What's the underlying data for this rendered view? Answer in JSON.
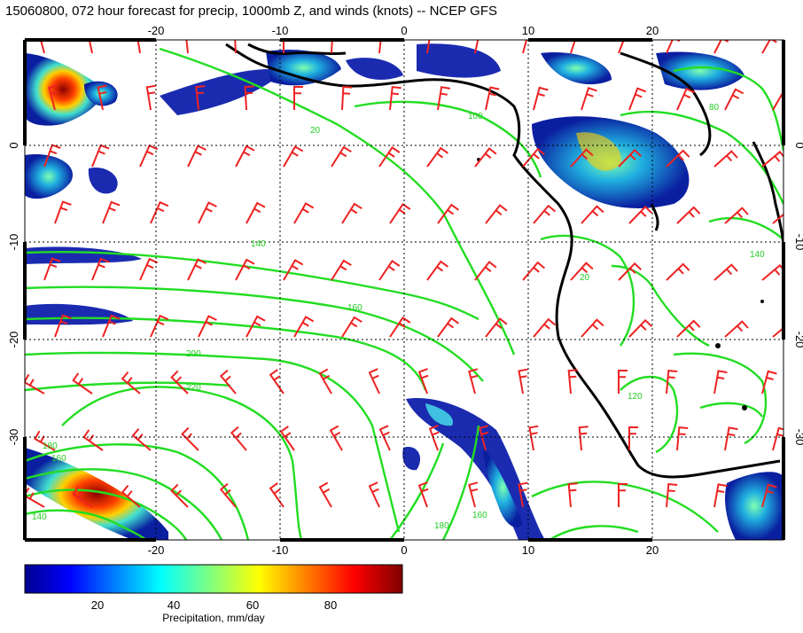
{
  "title": "15060800, 072 hour forecast for precip, 1000mb Z, and winds (knots) -- NCEP GFS",
  "map": {
    "lon_ticks": [
      "-20",
      "-10",
      "0",
      "10",
      "20"
    ],
    "lat_ticks": [
      "0",
      "-10",
      "-20",
      "-30"
    ],
    "contour_labels": [
      "20",
      "100",
      "140",
      "160",
      "200",
      "220",
      "180",
      "160",
      "140",
      "120",
      "80",
      "20",
      "140",
      "180",
      "160"
    ],
    "colors": {
      "coast": "#000000",
      "contour": "#22dd22",
      "barb": "#ee2222",
      "grid": "#000000"
    }
  },
  "colorbar": {
    "ticks": [
      "20",
      "40",
      "60",
      "80"
    ],
    "label": "Precipitation, mm/day",
    "range": [
      0,
      100
    ]
  }
}
